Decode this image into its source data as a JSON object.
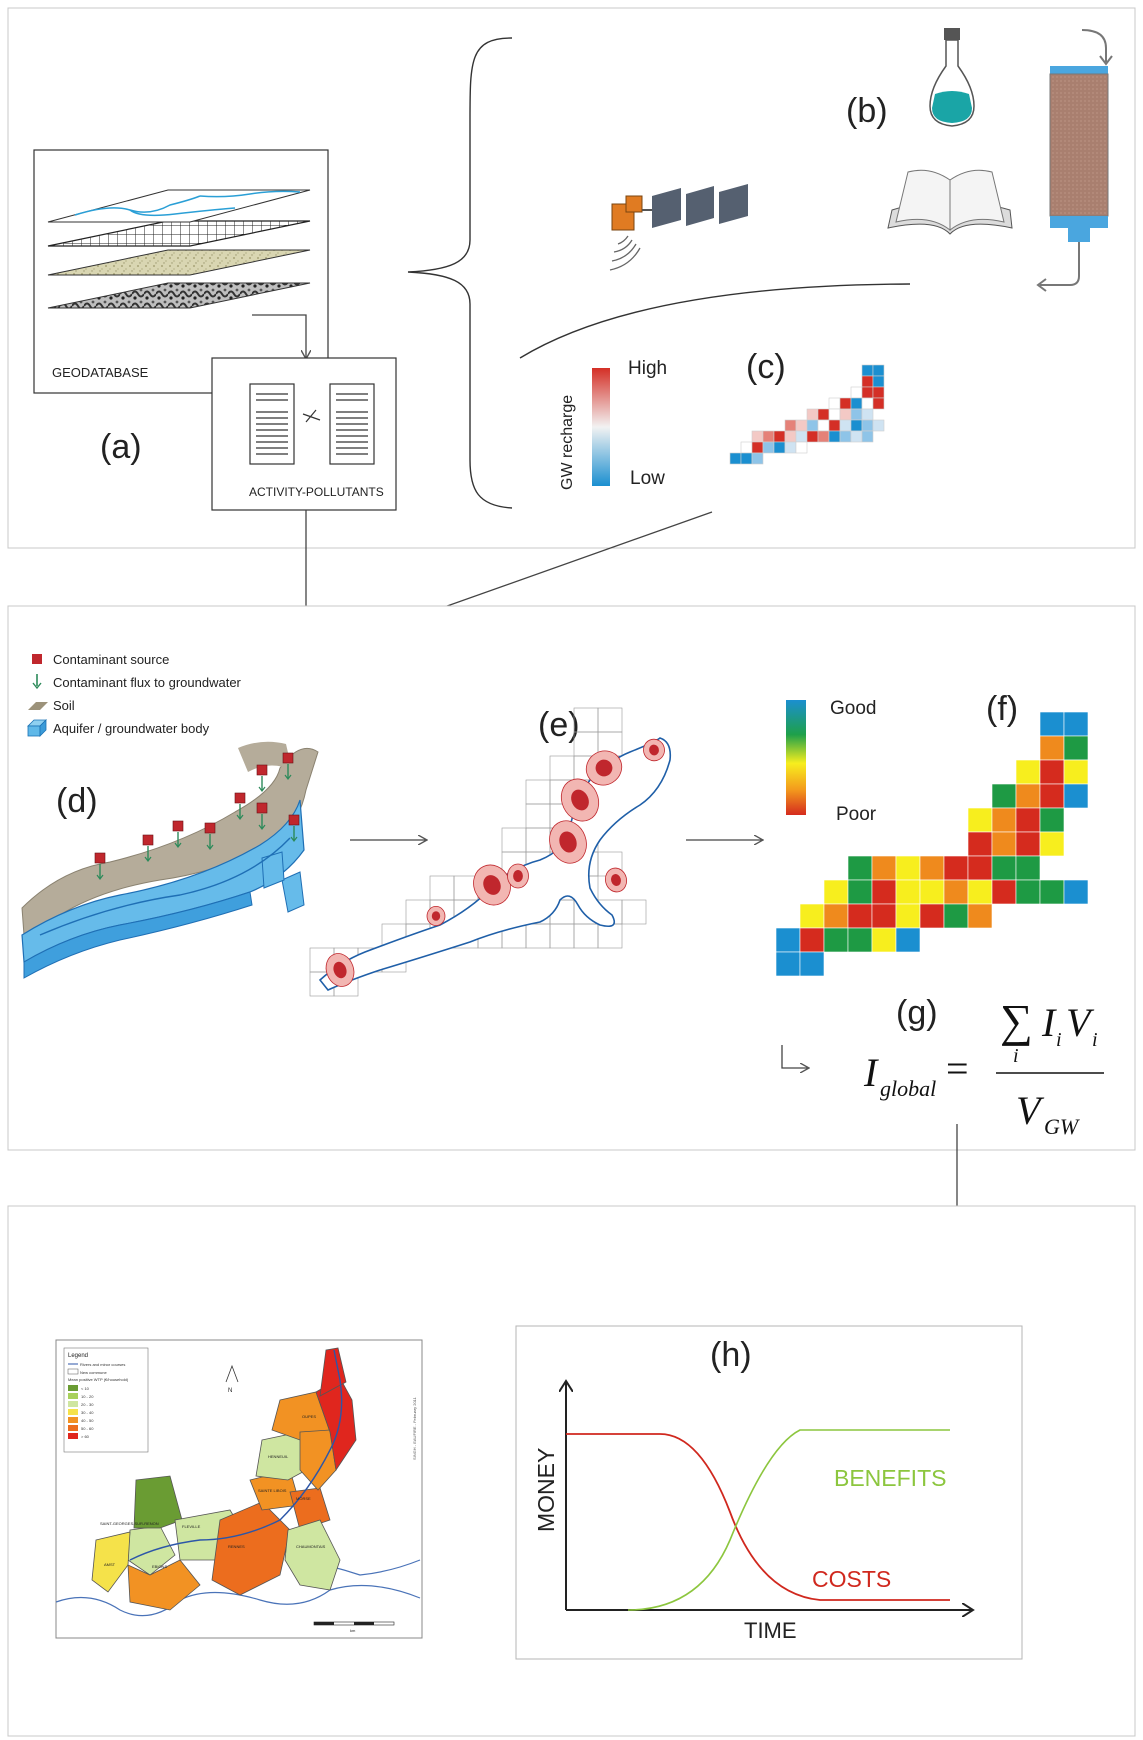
{
  "panels": {
    "a": "(a)",
    "b": "(b)",
    "c": "(c)",
    "d": "(d)",
    "e": "(e)",
    "f": "(f)",
    "g": "(g)",
    "h": "(h)"
  },
  "geodatabase": {
    "label": "GEODATABASE"
  },
  "activity": {
    "label": "ACTIVITY-POLLUTANTS"
  },
  "recharge_legend": {
    "axis": "GW recharge",
    "high": "High",
    "low": "Low"
  },
  "contaminant_legend": [
    {
      "label": "Contaminant source",
      "icon": "contaminant-source-icon"
    },
    {
      "label": "Contaminant flux to groundwater",
      "icon": "flux-arrow-icon"
    },
    {
      "label": "Soil",
      "icon": "soil-icon"
    },
    {
      "label": "Aquifer / groundwater body",
      "icon": "aquifer-icon"
    }
  ],
  "quality_legend": {
    "good": "Good",
    "poor": "Poor"
  },
  "formula": {
    "lhs": "I",
    "lhs_sub": "global",
    "num_sym": "∑",
    "num_idx": "i",
    "num_I": "I",
    "num_I_sub": "i",
    "num_V": "V",
    "num_V_sub": "i",
    "den": "V",
    "den_sub": "GW"
  },
  "chart": {
    "xlabel": "TIME",
    "ylabel": "MONEY",
    "benefits": "BENEFITS",
    "costs": "COSTS"
  },
  "map": {
    "legend_title": "Legend",
    "legend_items": [
      "Rivers and minor courses",
      "New commune",
      "Mean positive WTP (€/household)",
      "< 10",
      "10 - 20",
      "20 - 30",
      "30 - 40",
      "40 - 50",
      "50 - 60",
      "> 60"
    ],
    "towns": [
      "OUPES",
      "HENNEUIL",
      "SAINTE LIBOIS",
      "RENNES",
      "SAINT-GEORGES-SUR-RENON",
      "FLEVILLE",
      "MORSE",
      "CHAUMONTAIS",
      "AMST",
      "EBIONS"
    ],
    "north": "N",
    "credit": "SINGH - EAUFIRE - February 2011",
    "scale": "km"
  },
  "colors": {
    "red": "#d42f26",
    "green_curve": "#8cc63e",
    "cost_curve": "#d0281e",
    "blue": "#1b8fd0",
    "soil": "#b9b0a0",
    "map_red": "#e0261e",
    "map_orange": "#f29223",
    "map_darkorange": "#ec6d1e",
    "map_green": "#6a9c33",
    "map_lightgreen": "#cfe6a1",
    "map_yellow": "#f5e24a"
  }
}
